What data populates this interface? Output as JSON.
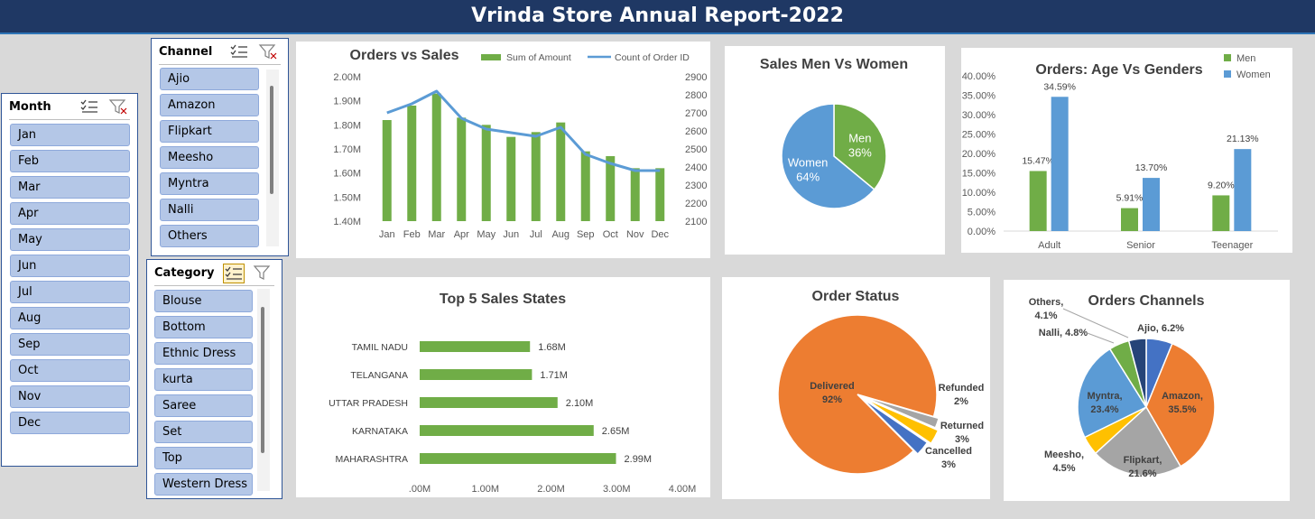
{
  "title": "Vrinda Store Annual Report-2022",
  "slicers": {
    "month": {
      "header": "Month",
      "items": [
        "Jan",
        "Feb",
        "Mar",
        "Apr",
        "May",
        "Jun",
        "Jul",
        "Aug",
        "Sep",
        "Oct",
        "Nov",
        "Dec"
      ]
    },
    "channel": {
      "header": "Channel",
      "items": [
        "Ajio",
        "Amazon",
        "Flipkart",
        "Meesho",
        "Myntra",
        "Nalli",
        "Others"
      ]
    },
    "category": {
      "header": "Category",
      "items": [
        "Blouse",
        "Bottom",
        "Ethnic Dress",
        "kurta",
        "Saree",
        "Set",
        "Top",
        "Western Dress"
      ]
    }
  },
  "colors": {
    "green": "#70ad47",
    "blue": "#5b9bd5",
    "orange": "#ed7d31",
    "gray": "#a5a5a5",
    "yellow": "#ffc000",
    "darkblue": "#4472c4",
    "navy": "#264478",
    "title_bg": "#1f3864",
    "slicer_btn": "#b4c7e7"
  },
  "chart_data": [
    {
      "type": "bar+line",
      "title": "Orders vs Sales",
      "categories": [
        "Jan",
        "Feb",
        "Mar",
        "Apr",
        "May",
        "Jun",
        "Jul",
        "Aug",
        "Sep",
        "Oct",
        "Nov",
        "Dec"
      ],
      "series": [
        {
          "name": "Sum of Amount",
          "kind": "bar",
          "axis": "left",
          "values": [
            1.82,
            1.88,
            1.93,
            1.83,
            1.8,
            1.75,
            1.77,
            1.81,
            1.69,
            1.67,
            1.62,
            1.62
          ]
        },
        {
          "name": "Count of Order ID",
          "kind": "line",
          "axis": "right",
          "values": [
            2700,
            2750,
            2820,
            2670,
            2610,
            2590,
            2570,
            2620,
            2470,
            2420,
            2380,
            2380
          ]
        }
      ],
      "y_left_ticks": [
        "2.00M",
        "1.90M",
        "1.80M",
        "1.70M",
        "1.60M",
        "1.50M",
        "1.40M"
      ],
      "y_left_range": [
        1.4,
        2.0
      ],
      "y_right_ticks": [
        "2900",
        "2800",
        "2700",
        "2600",
        "2500",
        "2400",
        "2300",
        "2200",
        "2100"
      ],
      "y_right_range": [
        2100,
        2900
      ]
    },
    {
      "type": "pie",
      "title": "Sales Men Vs Women",
      "slices": [
        {
          "label": "Men",
          "value": 36,
          "text": "36%"
        },
        {
          "label": "Women",
          "value": 64,
          "text": "64%"
        }
      ]
    },
    {
      "type": "bar",
      "title": "Orders: Age Vs Genders",
      "categories": [
        "Adult",
        "Senior",
        "Teenager"
      ],
      "series": [
        {
          "name": "Men",
          "values": [
            15.47,
            5.91,
            9.2
          ],
          "labels": [
            "15.47%",
            "5.91%",
            "9.20%"
          ]
        },
        {
          "name": "Women",
          "values": [
            34.59,
            13.7,
            21.13
          ],
          "labels": [
            "34.59%",
            "13.70%",
            "21.13%"
          ]
        }
      ],
      "y_ticks": [
        "40.00%",
        "35.00%",
        "30.00%",
        "25.00%",
        "20.00%",
        "15.00%",
        "10.00%",
        "5.00%",
        "0.00%"
      ],
      "ylim": [
        0,
        40
      ]
    },
    {
      "type": "bar",
      "orientation": "horizontal",
      "title": "Top 5 Sales States",
      "categories": [
        "TAMIL NADU",
        "TELANGANA",
        "UTTAR PRADESH",
        "KARNATAKA",
        "MAHARASHTRA"
      ],
      "values": [
        1.68,
        1.71,
        2.1,
        2.65,
        2.99
      ],
      "labels": [
        "1.68M",
        "1.71M",
        "2.10M",
        "2.65M",
        "2.99M"
      ],
      "x_ticks": [
        ".00M",
        "1.00M",
        "2.00M",
        "3.00M",
        "4.00M"
      ],
      "xlim": [
        0,
        4
      ]
    },
    {
      "type": "pie",
      "title": "Order Status",
      "slices": [
        {
          "label": "Delivered",
          "value": 92,
          "text": "92%"
        },
        {
          "label": "Refunded",
          "value": 2,
          "text": "2%"
        },
        {
          "label": "Returned",
          "value": 3,
          "text": "3%"
        },
        {
          "label": "Cancelled",
          "value": 3,
          "text": "3%"
        }
      ]
    },
    {
      "type": "pie",
      "title": "Orders Channels",
      "slices": [
        {
          "label": "Ajio",
          "value": 6.2,
          "text": "Ajio, 6.2%"
        },
        {
          "label": "Amazon",
          "value": 35.5,
          "text": "Amazon,|35.5%"
        },
        {
          "label": "Flipkart",
          "value": 21.6,
          "text": "Flipkart,|21.6%"
        },
        {
          "label": "Meesho",
          "value": 4.5,
          "text": "Meesho,|4.5%"
        },
        {
          "label": "Myntra",
          "value": 23.4,
          "text": "Myntra,|23.4%"
        },
        {
          "label": "Nalli",
          "value": 4.8,
          "text": "Nalli, 4.8%"
        },
        {
          "label": "Others",
          "value": 4.1,
          "text": "Others,|4.1%"
        }
      ]
    }
  ]
}
